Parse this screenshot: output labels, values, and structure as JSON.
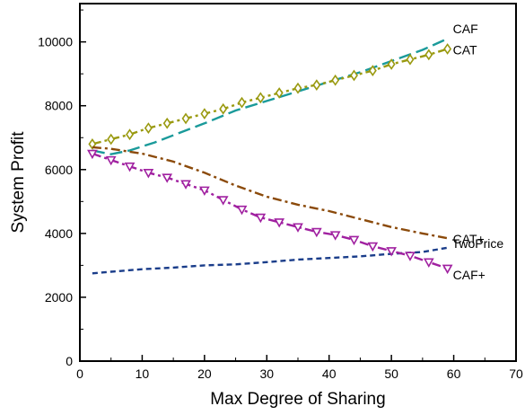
{
  "chart_data": {
    "type": "line",
    "xlabel": "Max Degree of Sharing",
    "ylabel": "System Profit",
    "xlim": [
      0,
      70
    ],
    "ylim": [
      0,
      11200
    ],
    "xticks": [
      0,
      10,
      20,
      30,
      40,
      50,
      60,
      70
    ],
    "yticks": [
      0,
      2000,
      4000,
      6000,
      8000,
      10000
    ],
    "grid": false,
    "legend": "inline labels at right end of each series",
    "series": [
      {
        "name": "CAF",
        "color": "#1a9a9a",
        "dash": "long-dash",
        "marker": "none",
        "x": [
          2,
          5,
          8,
          12,
          16,
          20,
          25,
          30,
          35,
          40,
          45,
          50,
          55,
          59
        ],
        "y": [
          6600,
          6480,
          6600,
          6850,
          7150,
          7450,
          7850,
          8150,
          8450,
          8750,
          9050,
          9400,
          9750,
          10100
        ]
      },
      {
        "name": "CAT",
        "color": "#9a9a10",
        "dash": "dash-dot",
        "marker": "diamond",
        "x": [
          2,
          5,
          8,
          11,
          14,
          17,
          20,
          23,
          26,
          29,
          32,
          35,
          38,
          41,
          44,
          47,
          50,
          53,
          56,
          59
        ],
        "y": [
          6800,
          6950,
          7100,
          7300,
          7450,
          7600,
          7750,
          7900,
          8100,
          8250,
          8400,
          8550,
          8650,
          8800,
          8950,
          9100,
          9300,
          9450,
          9600,
          9780
        ]
      },
      {
        "name": "CAT+",
        "color": "#8b4a0a",
        "dash": "dash-dot",
        "marker": "none",
        "x": [
          2,
          5,
          10,
          15,
          20,
          25,
          30,
          35,
          40,
          45,
          50,
          55,
          59
        ],
        "y": [
          6700,
          6650,
          6500,
          6250,
          5900,
          5500,
          5150,
          4900,
          4700,
          4450,
          4200,
          4000,
          3850
        ]
      },
      {
        "name": "TwoPrice",
        "color": "#1a3d8a",
        "dash": "short-dash",
        "marker": "none",
        "x": [
          2,
          5,
          10,
          15,
          20,
          25,
          30,
          35,
          40,
          45,
          50,
          55,
          59
        ],
        "y": [
          2750,
          2800,
          2880,
          2930,
          3000,
          3030,
          3100,
          3180,
          3230,
          3280,
          3360,
          3420,
          3550
        ]
      },
      {
        "name": "CAF+",
        "color": "#a020a0",
        "dash": "dash-dot",
        "marker": "triangle-down",
        "x": [
          2,
          5,
          8,
          11,
          14,
          17,
          20,
          23,
          26,
          29,
          32,
          35,
          38,
          41,
          44,
          47,
          50,
          53,
          56,
          59
        ],
        "y": [
          6500,
          6300,
          6100,
          5900,
          5750,
          5550,
          5350,
          5050,
          4750,
          4500,
          4350,
          4200,
          4050,
          3950,
          3800,
          3600,
          3450,
          3300,
          3100,
          2900
        ]
      }
    ]
  }
}
